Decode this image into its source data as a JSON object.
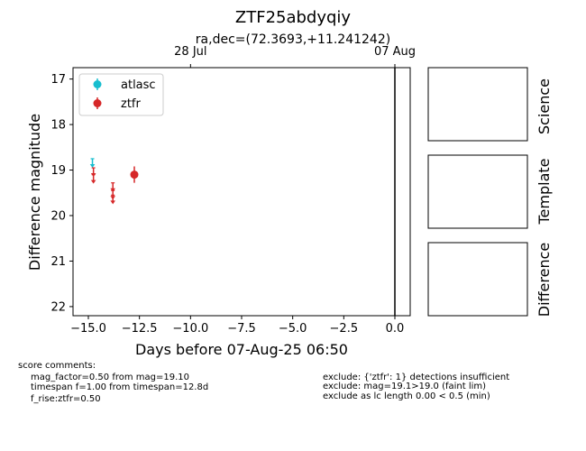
{
  "chart_data": {
    "type": "scatter",
    "title": "ZTF25abdyqiy",
    "top_axis_title": "ra,dec=(72.3693,+11.241242)",
    "xlabel": "Days before 07-Aug-25 06:50",
    "ylabel": "Difference magnitude",
    "xlim": [
      -15.75,
      0.75
    ],
    "ylim": [
      22.2,
      16.75
    ],
    "x_ticks": [
      {
        "value": -15.0,
        "label": "−15.0"
      },
      {
        "value": -12.5,
        "label": "−12.5"
      },
      {
        "value": -10.0,
        "label": "−10.0"
      },
      {
        "value": -7.5,
        "label": "−7.5"
      },
      {
        "value": -5.0,
        "label": "−5.0"
      },
      {
        "value": -2.5,
        "label": "−2.5"
      },
      {
        "value": 0.0,
        "label": "0.0"
      }
    ],
    "y_ticks": [
      {
        "value": 17,
        "label": "17"
      },
      {
        "value": 18,
        "label": "18"
      },
      {
        "value": 19,
        "label": "19"
      },
      {
        "value": 20,
        "label": "20"
      },
      {
        "value": 21,
        "label": "21"
      },
      {
        "value": 22,
        "label": "22"
      }
    ],
    "top_ticks": [
      {
        "value": -10.0,
        "label": "28 Jul"
      },
      {
        "value": 0.0,
        "label": "07 Aug"
      }
    ],
    "vline_x": 0.0,
    "legend": [
      {
        "name": "atlasc",
        "color": "#17becf"
      },
      {
        "name": "ztfr",
        "color": "#d62728"
      }
    ],
    "series": [
      {
        "name": "atlasc",
        "color": "#17becf",
        "upper_limits": [
          {
            "x": -14.8,
            "y": 18.85
          }
        ],
        "detections": []
      },
      {
        "name": "ztfr",
        "color": "#d62728",
        "upper_limits": [
          {
            "x": -14.75,
            "y": 19.05
          },
          {
            "x": -14.75,
            "y": 19.2
          },
          {
            "x": -13.8,
            "y": 19.38
          },
          {
            "x": -13.8,
            "y": 19.55
          },
          {
            "x": -13.8,
            "y": 19.65
          }
        ],
        "detections": [
          {
            "x": -12.75,
            "y": 19.1,
            "err": 0.18
          }
        ]
      }
    ]
  },
  "stamps": [
    {
      "label": "Science"
    },
    {
      "label": "Template"
    },
    {
      "label": "Difference"
    }
  ],
  "comments": {
    "left": [
      "score comments:",
      "mag_factor=0.50 from mag=19.10",
      "timespan f=1.00 from timespan=12.8d",
      "f_rise:ztfr=0.50"
    ],
    "right": [
      "exclude: {'ztfr': 1} detections insufficient",
      "exclude: mag=19.1>19.0 (faint lim)",
      "exclude as lc length 0.00 < 0.5 (min)"
    ]
  }
}
